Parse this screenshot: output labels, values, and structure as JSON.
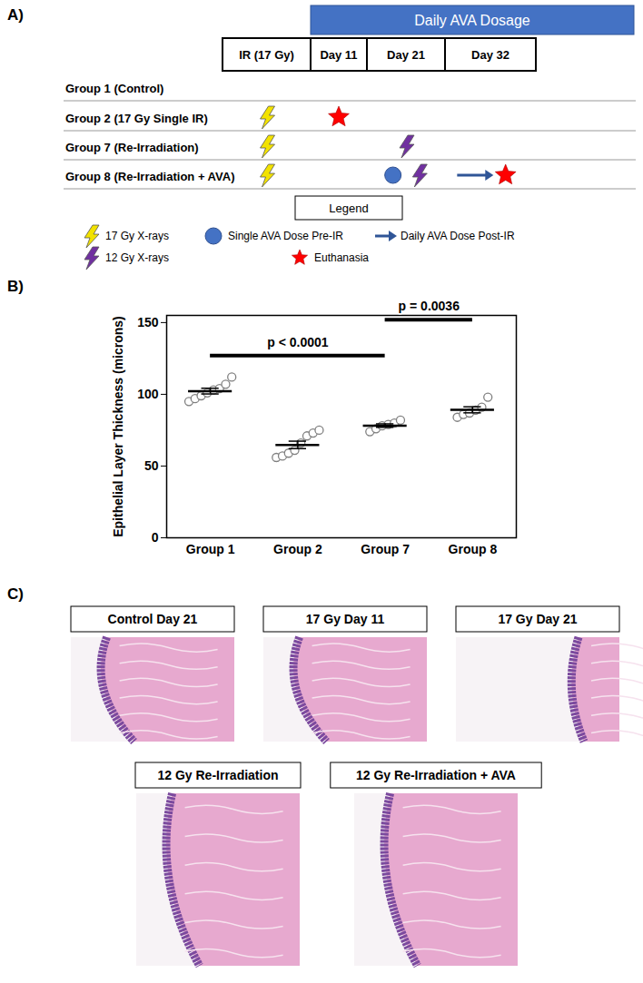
{
  "panel_labels": [
    "A)",
    "B)",
    "C)"
  ],
  "diagram": {
    "header": "Daily AVA Dosage",
    "header_color": "#4472c4",
    "columns": [
      "IR (17 Gy)",
      "Day 11",
      "Day 21",
      "Day 32"
    ],
    "rows": [
      {
        "label": "Group 1 (Control)",
        "events": []
      },
      {
        "label": "Group 2 (17 Gy Single IR)",
        "events": [
          {
            "mark": "17 Gy X-rays",
            "column": "IR (17 Gy)"
          },
          {
            "mark": "Euthanasia",
            "column": "Day 11"
          }
        ]
      },
      {
        "label": "Group 7 (Re-Irradiation)",
        "events": [
          {
            "mark": "17 Gy X-rays",
            "column": "IR (17 Gy)"
          },
          {
            "mark": "12 Gy X-rays",
            "column": "Day 21"
          }
        ]
      },
      {
        "label": "Group 8 (Re-Irradiation + AVA)",
        "events": [
          {
            "mark": "17 Gy X-rays",
            "column": "IR (17 Gy)"
          },
          {
            "mark": "Single AVA Dose Pre-IR",
            "column": "Day 21"
          },
          {
            "mark": "12 Gy X-rays",
            "column": "Day 21"
          },
          {
            "mark": "Daily AVA Dose Post-IR",
            "column": "Day 32"
          },
          {
            "mark": "Euthanasia",
            "column": "Day 32"
          }
        ]
      }
    ],
    "legend_title": "Legend",
    "legend": [
      {
        "label": "17 Gy X-rays",
        "marker": "lightning",
        "color": "#f2e200"
      },
      {
        "label": "Single AVA Dose Pre-IR",
        "marker": "circle",
        "color": "#4472c4"
      },
      {
        "label": "Daily AVA Dose Post-IR",
        "marker": "arrow",
        "color": "#2f5597"
      },
      {
        "label": "12 Gy X-rays",
        "marker": "lightning",
        "color": "#7030a0"
      },
      {
        "label": "Euthanasia",
        "marker": "star",
        "color": "#ff0000"
      }
    ]
  },
  "chart_data": {
    "type": "scatter",
    "categories": [
      "Group 1",
      "Group 2",
      "Group 7",
      "Group 8"
    ],
    "points": [
      [
        95,
        97,
        99,
        101,
        103,
        104,
        107,
        112
      ],
      [
        56,
        57,
        59,
        61,
        66,
        71,
        73,
        75
      ],
      [
        74,
        76,
        78,
        79,
        80,
        82
      ],
      [
        84,
        86,
        87,
        89,
        91,
        98
      ]
    ],
    "means": [
      102.25,
      64.75,
      78.2,
      89.2
    ],
    "sem": [
      2,
      2.6,
      1.2,
      2.1
    ],
    "color": "#808080",
    "marker": "circle",
    "ylabel": "Epithelial Layer Thickness (microns)",
    "ylim": [
      0,
      155
    ],
    "yticks": [
      0,
      50,
      100,
      150
    ],
    "annotations": [
      {
        "text": "p < 0.0001",
        "from": "Group 1",
        "to": "Group 7",
        "y": 127
      },
      {
        "text": "p = 0.0036",
        "from": "Group 7",
        "to": "Group 8",
        "y": 152
      }
    ]
  },
  "images": [
    {
      "title": "Control Day 21"
    },
    {
      "title": "17 Gy Day 11"
    },
    {
      "title": "17 Gy Day 21"
    },
    {
      "title": "12 Gy Re-Irradiation"
    },
    {
      "title": "12 Gy Re-Irradiation + AVA"
    }
  ]
}
